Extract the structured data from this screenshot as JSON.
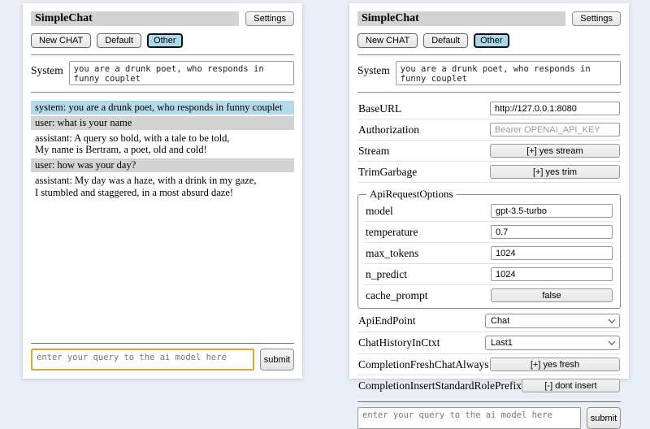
{
  "app": {
    "title": "SimpleChat",
    "settings_label": "Settings",
    "sessions": [
      "New CHAT",
      "Default",
      "Other"
    ],
    "active_session": "Other",
    "system_label": "System",
    "system_prompt": "you are a drunk poet, who responds in funny couplet",
    "query_placeholder": "enter your query to the ai model here",
    "submit_label": "submit"
  },
  "colors": {
    "page-bg": "#eaeef6",
    "accent": "#add8e6",
    "system-msg-bg": "#b5d9e9",
    "user-msg-bg": "#d3d3d3",
    "focus-border": "#d9a43c"
  },
  "chat_panel": {
    "messages": [
      {
        "role": "system",
        "text": "system: you are a drunk poet, who responds in funny couplet"
      },
      {
        "role": "user",
        "text": "user: what is your name"
      },
      {
        "role": "assistant",
        "text": "assistant: A query so bold, with a tale to be told,\nMy name is Bertram, a poet, old and cold!"
      },
      {
        "role": "user",
        "text": "user: how was your day?"
      },
      {
        "role": "assistant",
        "text": "assistant: My day was a haze, with a drink in my gaze,\nI stumbled and staggered, in a most absurd daze!"
      }
    ]
  },
  "settings_panel": {
    "rows_top": [
      {
        "label": "BaseURL",
        "type": "input",
        "value": "http://127.0.0.1:8080",
        "name": "baseurl-input"
      },
      {
        "label": "Authorization",
        "type": "input-placeholder",
        "value": "Bearer OPENAI_API_KEY",
        "name": "authorization-input"
      },
      {
        "label": "Stream",
        "type": "button",
        "value": "[+] yes stream",
        "name": "stream-toggle"
      },
      {
        "label": "TrimGarbage",
        "type": "button",
        "value": "[+] yes trim",
        "name": "trimgarbage-toggle"
      }
    ],
    "fieldset": {
      "legend": "ApiRequestOptions",
      "rows": [
        {
          "label": "model",
          "type": "input",
          "value": "gpt-3.5-turbo",
          "name": "model-input"
        },
        {
          "label": "temperature",
          "type": "input",
          "value": "0.7",
          "name": "temperature-input"
        },
        {
          "label": "max_tokens",
          "type": "input",
          "value": "1024",
          "name": "max-tokens-input"
        },
        {
          "label": "n_predict",
          "type": "input",
          "value": "1024",
          "name": "n-predict-input"
        },
        {
          "label": "cache_prompt",
          "type": "button",
          "value": "false",
          "name": "cache-prompt-toggle"
        }
      ]
    },
    "rows_bottom": [
      {
        "label": "ApiEndPoint",
        "type": "select",
        "value": "Chat",
        "name": "apiendpoint-select"
      },
      {
        "label": "ChatHistoryInCtxt",
        "type": "select",
        "value": "Last1",
        "name": "chathistoryinctxt-select"
      },
      {
        "label": "CompletionFreshChatAlways",
        "type": "button",
        "value": "[+] yes fresh",
        "name": "completion-fresh-toggle"
      },
      {
        "label": "CompletionInsertStandardRolePrefix",
        "type": "button",
        "value": "[-] dont insert",
        "name": "completion-roleprefix-toggle"
      }
    ]
  }
}
